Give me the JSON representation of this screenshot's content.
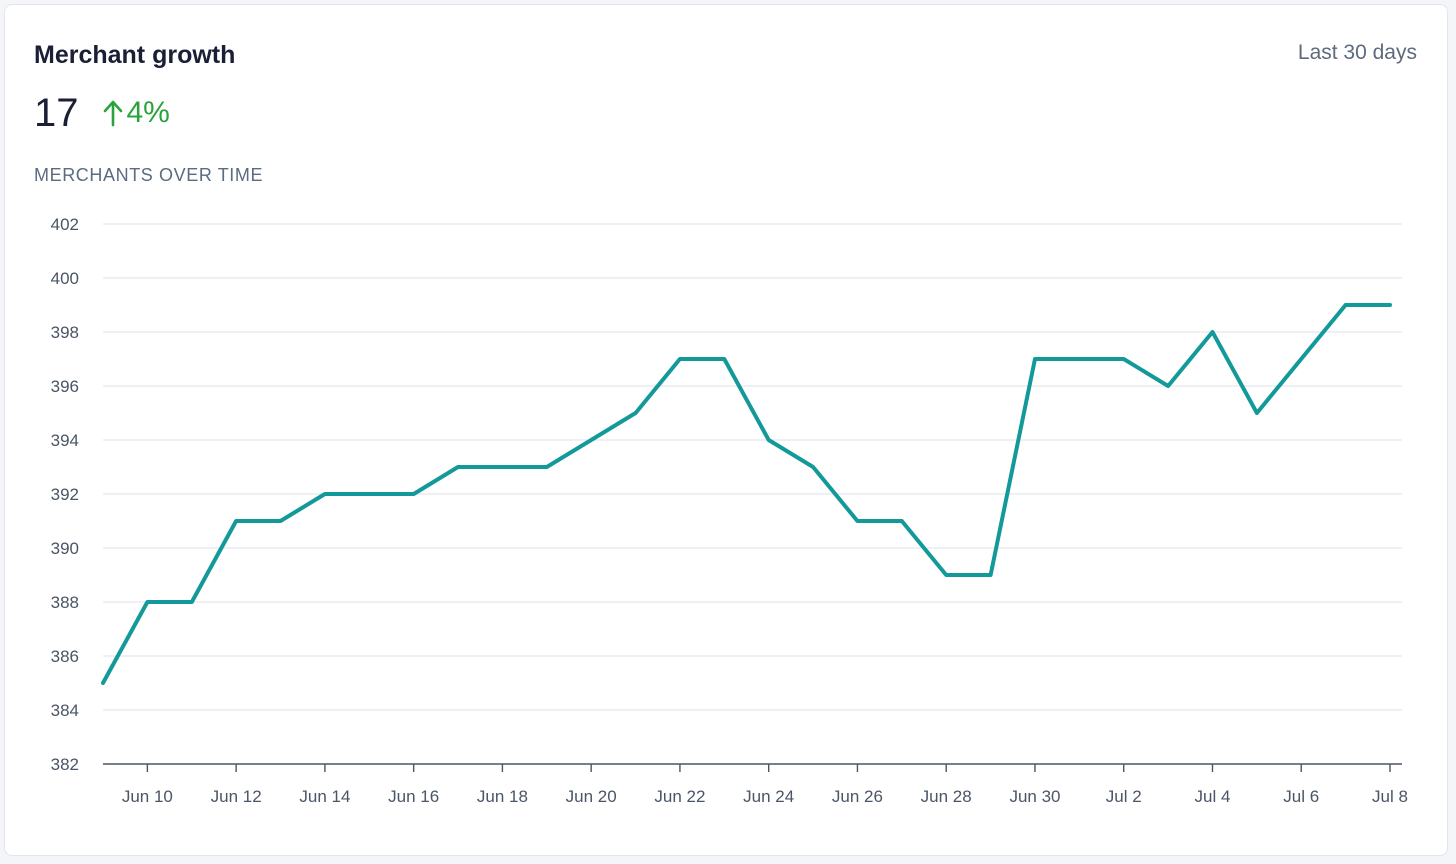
{
  "card": {
    "title": "Merchant growth",
    "range_label": "Last 30 days",
    "metric_value": "17",
    "metric_change": "4%",
    "change_icon": "arrow-up-icon",
    "section_label": "MERCHANTS OVER TIME"
  },
  "colors": {
    "line": "#14999a",
    "positive": "#2aa33b",
    "grid": "#e3e6ec",
    "axis": "#4a5566"
  },
  "chart_data": {
    "type": "line",
    "title": "MERCHANTS OVER TIME",
    "xlabel": "",
    "ylabel": "",
    "ylim": [
      382,
      402
    ],
    "yticks": [
      382,
      384,
      386,
      388,
      390,
      392,
      394,
      396,
      398,
      400,
      402
    ],
    "xlim": [
      "2024-06-09",
      "2024-07-08"
    ],
    "xtick_labels": [
      "Jun 10",
      "Jun 12",
      "Jun 14",
      "Jun 16",
      "Jun 18",
      "Jun 20",
      "Jun 22",
      "Jun 24",
      "Jun 26",
      "Jun 28",
      "Jun 30",
      "Jul 2",
      "Jul 4",
      "Jul 6",
      "Jul 8"
    ],
    "grid": true,
    "legend": "none",
    "series": [
      {
        "name": "",
        "x": [
          "Jun 9",
          "Jun 10",
          "Jun 11",
          "Jun 12",
          "Jun 13",
          "Jun 14",
          "Jun 15",
          "Jun 16",
          "Jun 17",
          "Jun 18",
          "Jun 19",
          "Jun 20",
          "Jun 21",
          "Jun 22",
          "Jun 23",
          "Jun 24",
          "Jun 25",
          "Jun 26",
          "Jun 27",
          "Jun 28",
          "Jun 29",
          "Jun 30",
          "Jul 1",
          "Jul 2",
          "Jul 3",
          "Jul 4",
          "Jul 5",
          "Jul 6",
          "Jul 7",
          "Jul 8"
        ],
        "values": [
          385,
          388,
          388,
          391,
          391,
          392,
          392,
          392,
          393,
          393,
          393,
          394,
          395,
          397,
          397,
          394,
          393,
          391,
          391,
          389,
          389,
          397,
          397,
          397,
          396,
          398,
          395,
          397,
          399,
          399
        ]
      }
    ]
  }
}
